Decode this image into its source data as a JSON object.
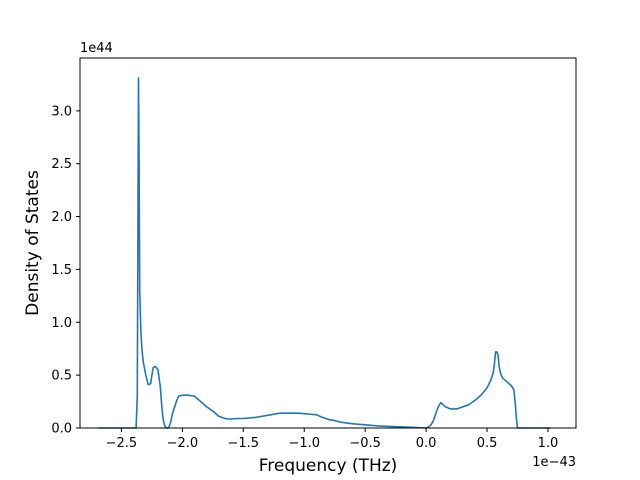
{
  "chart_data": {
    "type": "line",
    "xlabel": "Frequency (THz)",
    "ylabel": "Density of States",
    "x_offset_text": "1e−43",
    "y_offset_text": "1e44",
    "xlim": [
      -2.84,
      1.23
    ],
    "ylim": [
      0,
      3.5
    ],
    "x_ticks": [
      -2.5,
      -2.0,
      -1.5,
      -1.0,
      -0.5,
      0.0,
      0.5,
      1.0
    ],
    "x_tick_labels": [
      "−2.5",
      "−2.0",
      "−1.5",
      "−1.0",
      "−0.5",
      "0.0",
      "0.5",
      "1.0"
    ],
    "y_ticks": [
      0.0,
      0.5,
      1.0,
      1.5,
      2.0,
      2.5,
      3.0
    ],
    "y_tick_labels": [
      "0.0",
      "0.5",
      "1.0",
      "1.5",
      "2.0",
      "2.5",
      "3.0"
    ],
    "grid": false,
    "series": [
      {
        "color": "#1f77b4",
        "x": [
          -2.69,
          -2.38,
          -2.37,
          -2.36,
          -2.355,
          -2.35,
          -2.34,
          -2.33,
          -2.32,
          -2.31,
          -2.3,
          -2.28,
          -2.26,
          -2.25,
          -2.24,
          -2.23,
          -2.22,
          -2.2,
          -2.18,
          -2.17,
          -2.16,
          -2.15,
          -2.14,
          -2.13,
          -2.12,
          -2.11,
          -2.1,
          -2.09,
          -2.08,
          -2.07,
          -2.06,
          -2.05,
          -2.03,
          -2.0,
          -1.97,
          -1.95,
          -1.9,
          -1.85,
          -1.8,
          -1.75,
          -1.7,
          -1.65,
          -1.62,
          -1.6,
          -1.55,
          -1.5,
          -1.4,
          -1.35,
          -1.3,
          -1.25,
          -1.2,
          -1.15,
          -1.1,
          -1.05,
          -1.0,
          -0.95,
          -0.9,
          -0.87,
          -0.85,
          -0.8,
          -0.75,
          -0.7,
          -0.6,
          -0.5,
          -0.4,
          -0.3,
          -0.2,
          -0.1,
          0.0,
          0.02,
          0.04,
          0.06,
          0.08,
          0.1,
          0.12,
          0.14,
          0.16,
          0.18,
          0.2,
          0.25,
          0.3,
          0.35,
          0.4,
          0.45,
          0.5,
          0.53,
          0.55,
          0.56,
          0.57,
          0.58,
          0.59,
          0.6,
          0.61,
          0.62,
          0.63,
          0.65,
          0.68,
          0.7,
          0.72,
          0.73,
          0.74,
          0.75,
          0.8,
          1.02
        ],
        "values": [
          0.0,
          0.0,
          0.3,
          3.31,
          2.5,
          1.3,
          0.9,
          0.72,
          0.62,
          0.56,
          0.5,
          0.41,
          0.42,
          0.5,
          0.57,
          0.58,
          0.58,
          0.55,
          0.38,
          0.22,
          0.1,
          0.04,
          0.01,
          0.0,
          0.0,
          0.01,
          0.04,
          0.09,
          0.14,
          0.18,
          0.21,
          0.25,
          0.3,
          0.31,
          0.31,
          0.31,
          0.3,
          0.25,
          0.2,
          0.16,
          0.11,
          0.09,
          0.085,
          0.085,
          0.09,
          0.09,
          0.1,
          0.11,
          0.12,
          0.13,
          0.14,
          0.14,
          0.14,
          0.14,
          0.135,
          0.13,
          0.125,
          0.11,
          0.1,
          0.08,
          0.07,
          0.055,
          0.04,
          0.03,
          0.02,
          0.015,
          0.01,
          0.005,
          0.0,
          0.01,
          0.03,
          0.07,
          0.14,
          0.2,
          0.24,
          0.22,
          0.2,
          0.19,
          0.18,
          0.18,
          0.2,
          0.22,
          0.26,
          0.31,
          0.38,
          0.45,
          0.52,
          0.6,
          0.72,
          0.72,
          0.69,
          0.58,
          0.52,
          0.49,
          0.47,
          0.45,
          0.42,
          0.4,
          0.36,
          0.25,
          0.1,
          0.0,
          0.0,
          0.0
        ]
      }
    ]
  }
}
